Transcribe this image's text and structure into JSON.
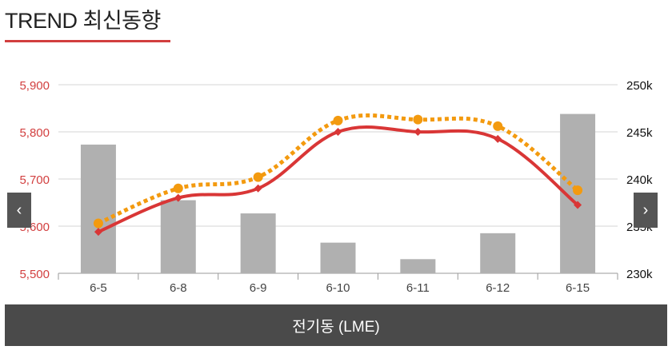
{
  "header": {
    "title": "TREND 최신동향"
  },
  "colors": {
    "accent": "#d23f3f",
    "price_line": "#d93636",
    "volume_line": "#f39a0f",
    "bars": "#b0b0b0",
    "grid": "#d6d6d6",
    "footer_bg": "#4a4a4a"
  },
  "nav": {
    "prev_icon": "chevron-left-icon",
    "prev_symbol": "‹",
    "next_icon": "chevron-right-icon",
    "next_symbol": "›"
  },
  "footer": {
    "label": "전기동 (LME)"
  },
  "chart_data": {
    "type": "bar",
    "categories": [
      "6-5",
      "6-8",
      "6-9",
      "6-10",
      "6-11",
      "6-12",
      "6-15"
    ],
    "left_axis": {
      "ticks": [
        "5,500",
        "5,600",
        "5,700",
        "5,800",
        "5,900"
      ],
      "ylim": [
        5500,
        5900
      ]
    },
    "right_axis": {
      "ticks": [
        "230k",
        "235k",
        "240k",
        "245k",
        "250k"
      ],
      "ylim": [
        230000,
        250000
      ]
    },
    "grid": true,
    "series": [
      {
        "type": "bar",
        "axis": "left",
        "values": [
          5773,
          5655,
          5627,
          5565,
          5530,
          5585,
          5838
        ]
      },
      {
        "type": "line",
        "axis": "left",
        "values": [
          5588,
          5660,
          5680,
          5800,
          5800,
          5785,
          5645
        ]
      },
      {
        "type": "line",
        "axis": "right",
        "dashed": true,
        "values": [
          235300,
          239000,
          240200,
          246200,
          246300,
          245600,
          238800
        ]
      }
    ]
  }
}
